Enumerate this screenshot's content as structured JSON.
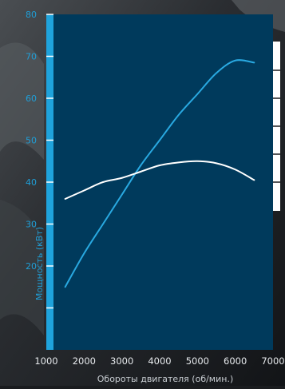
{
  "chart_data": {
    "type": "line",
    "xlabel": "Обороты двигателя (об/мин.)",
    "ylabel": "Мощность (кВт)",
    "xlim": [
      1000,
      7000
    ],
    "ylim": [
      0,
      80
    ],
    "x_ticks": [
      1000,
      2000,
      3000,
      4000,
      5000,
      6000,
      7000
    ],
    "y_ticks": [
      20,
      30,
      40,
      50,
      60,
      70,
      80
    ],
    "grid": false,
    "colors": {
      "plot_bg": "#003a5c",
      "accent": "#1fa3dc",
      "axis_text": "#1f9fd8",
      "outer_bg": "#1a1c1f"
    },
    "series": [
      {
        "color": "#29a9e1",
        "x": [
          1500,
          2000,
          2500,
          3000,
          3500,
          4000,
          4500,
          5000,
          5500,
          6000,
          6500
        ],
        "y": [
          15,
          23,
          30,
          37,
          44,
          50,
          56,
          61,
          66,
          69,
          68.5
        ]
      },
      {
        "color": "#ffffff",
        "x": [
          1500,
          2000,
          2500,
          3000,
          3500,
          4000,
          4500,
          5000,
          5500,
          6000,
          6500
        ],
        "y": [
          36,
          38,
          40,
          41,
          42.5,
          44,
          44.7,
          45,
          44.5,
          43,
          40.5
        ]
      }
    ]
  }
}
